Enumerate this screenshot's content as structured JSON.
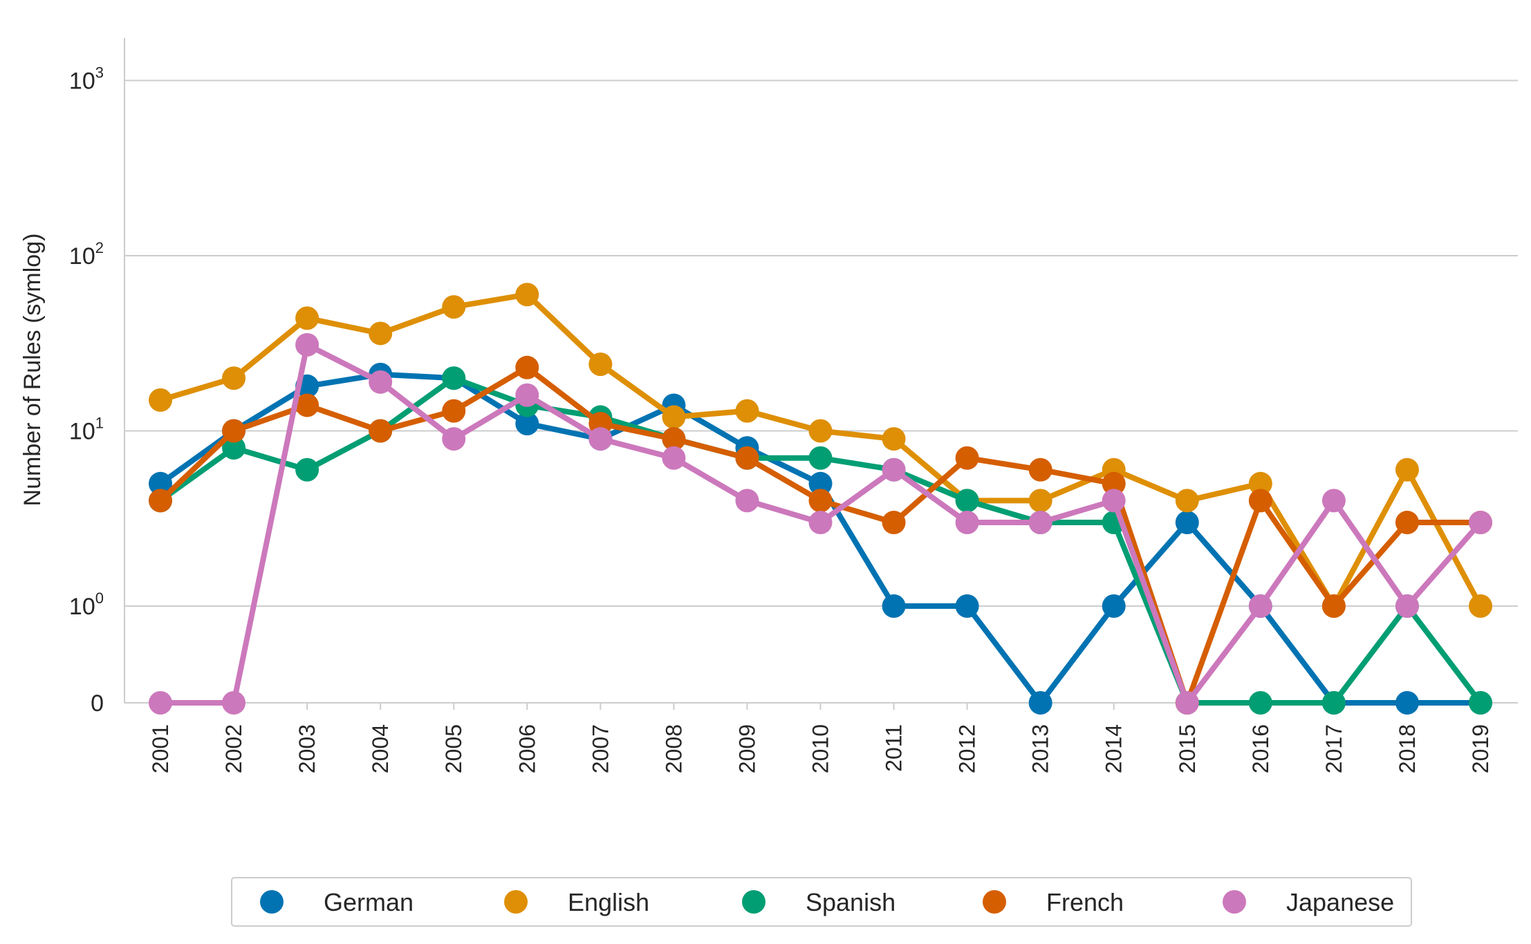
{
  "chart_data": {
    "type": "line",
    "ylabel": "Number of Rules (symlog)",
    "yscale": "symlog",
    "ylim": [
      0,
      1000
    ],
    "yticks": [
      {
        "value": 0,
        "base": "0",
        "exp": ""
      },
      {
        "value": 1,
        "base": "10",
        "exp": "0"
      },
      {
        "value": 10,
        "base": "10",
        "exp": "1"
      },
      {
        "value": 100,
        "base": "10",
        "exp": "2"
      },
      {
        "value": 1000,
        "base": "10",
        "exp": "3"
      }
    ],
    "x": [
      "2001",
      "2002",
      "2003",
      "2004",
      "2005",
      "2006",
      "2007",
      "2008",
      "2009",
      "2010",
      "2011",
      "2012",
      "2013",
      "2014",
      "2015",
      "2016",
      "2017",
      "2018",
      "2019"
    ],
    "grid": "horizontal",
    "legend_position": "bottom",
    "series": [
      {
        "name": "German",
        "color": "#0173b2",
        "values": [
          5,
          10,
          18,
          21,
          20,
          11,
          9,
          14,
          8,
          5,
          1,
          1,
          0,
          1,
          3,
          1,
          0,
          0,
          0
        ]
      },
      {
        "name": "English",
        "color": "#de8f05",
        "values": [
          15,
          20,
          44,
          36,
          51,
          60,
          24,
          12,
          13,
          10,
          9,
          4,
          4,
          6,
          4,
          5,
          1,
          6,
          1
        ]
      },
      {
        "name": "Spanish",
        "color": "#029e73",
        "values": [
          4,
          8,
          6,
          10,
          20,
          14,
          12,
          9,
          7,
          7,
          6,
          4,
          3,
          3,
          0,
          0,
          0,
          1,
          0
        ]
      },
      {
        "name": "French",
        "color": "#d55e00",
        "values": [
          4,
          10,
          14,
          10,
          13,
          23,
          11,
          9,
          7,
          4,
          3,
          7,
          6,
          5,
          0,
          4,
          1,
          3,
          3
        ]
      },
      {
        "name": "Japanese",
        "color": "#cc78bc",
        "values": [
          0,
          0,
          31,
          19,
          9,
          16,
          9,
          7,
          4,
          3,
          6,
          3,
          3,
          4,
          0,
          1,
          4,
          1,
          3
        ]
      }
    ]
  }
}
